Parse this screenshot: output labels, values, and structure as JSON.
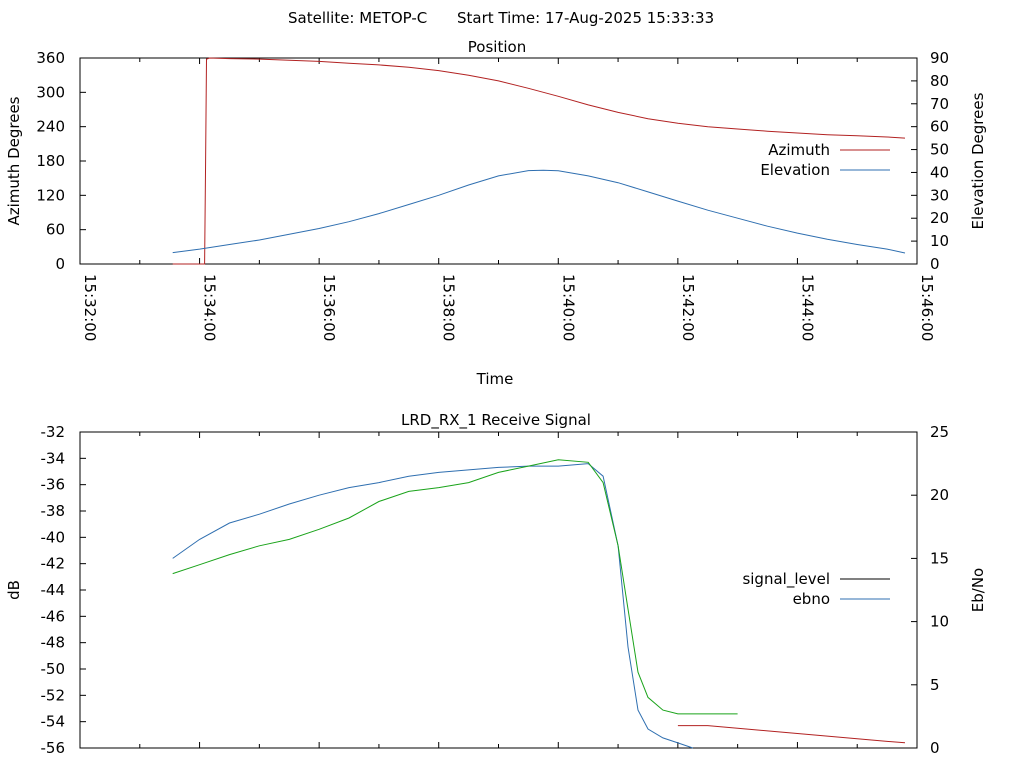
{
  "header": {
    "satellite_label": "Satellite: METOP-C",
    "start_time_label": "Start Time: 17-Aug-2025 15:33:33"
  },
  "chart_data": [
    {
      "type": "line",
      "title": "Position",
      "xlabel": "Time",
      "ylabel": "Azimuth Degrees",
      "y2label": "Elevation Degrees",
      "xlim": [
        "15:32:00",
        "15:46:00"
      ],
      "ylim": [
        0,
        360
      ],
      "y2lim": [
        0,
        90
      ],
      "xticks": [
        "15:32:00",
        "15:34:00",
        "15:36:00",
        "15:38:00",
        "15:40:00",
        "15:42:00",
        "15:44:00",
        "15:46:00"
      ],
      "yticks": [
        "0",
        "60",
        "120",
        "180",
        "240",
        "300",
        "360"
      ],
      "y2ticks": [
        "0",
        "10",
        "20",
        "30",
        "40",
        "50",
        "60",
        "70",
        "80",
        "90"
      ],
      "legend_position": "right",
      "series": [
        {
          "name": "Azimuth",
          "color": "#b22222",
          "axis": "left",
          "x": [
            "15:33:33",
            "15:33:50",
            "15:34:05",
            "15:34:06",
            "15:34:07",
            "15:34:10",
            "15:34:30",
            "15:35:00",
            "15:35:30",
            "15:36:00",
            "15:36:30",
            "15:37:00",
            "15:37:30",
            "15:38:00",
            "15:38:30",
            "15:39:00",
            "15:39:30",
            "15:40:00",
            "15:40:30",
            "15:41:00",
            "15:41:30",
            "15:42:00",
            "15:42:30",
            "15:43:00",
            "15:43:30",
            "15:44:00",
            "15:44:30",
            "15:45:00",
            "15:45:30",
            "15:45:48"
          ],
          "y": [
            0,
            0,
            0,
            180,
            358,
            360,
            359,
            358,
            356,
            354,
            351,
            348,
            344,
            338,
            330,
            320,
            307,
            293,
            278,
            265,
            254,
            246,
            240,
            236,
            232,
            229,
            226,
            224,
            222,
            220
          ]
        },
        {
          "name": "Elevation",
          "color": "#2f6fb0",
          "axis": "right",
          "x": [
            "15:33:33",
            "15:34:00",
            "15:34:30",
            "15:35:00",
            "15:35:30",
            "15:36:00",
            "15:36:30",
            "15:37:00",
            "15:37:30",
            "15:38:00",
            "15:38:30",
            "15:39:00",
            "15:39:30",
            "15:39:45",
            "15:40:00",
            "15:40:30",
            "15:41:00",
            "15:41:30",
            "15:42:00",
            "15:42:30",
            "15:43:00",
            "15:43:30",
            "15:44:00",
            "15:44:30",
            "15:45:00",
            "15:45:30",
            "15:45:48"
          ],
          "y": [
            5,
            6.5,
            8.5,
            10.5,
            13,
            15.5,
            18.5,
            22,
            26,
            30,
            34.5,
            38.5,
            40.8,
            41,
            40.7,
            38.5,
            35.5,
            31.5,
            27.5,
            23.5,
            20,
            16.5,
            13.5,
            10.8,
            8.5,
            6.5,
            4.8
          ]
        }
      ]
    },
    {
      "type": "line",
      "title": "LRD_RX_1 Receive Signal",
      "xlabel": "",
      "ylabel": "dB",
      "y2label": "Eb/No",
      "xlim": [
        "15:32:00",
        "15:46:00"
      ],
      "ylim": [
        -56,
        -32
      ],
      "y2lim": [
        0,
        25
      ],
      "yticks": [
        "-32",
        "-34",
        "-36",
        "-38",
        "-40",
        "-42",
        "-44",
        "-46",
        "-48",
        "-50",
        "-52",
        "-54",
        "-56"
      ],
      "y2ticks": [
        "0",
        "5",
        "10",
        "15",
        "20",
        "25"
      ],
      "legend_position": "right",
      "series": [
        {
          "name": "signal_level",
          "color": "#000000",
          "axis": "left",
          "x": [],
          "y": []
        },
        {
          "name": "ebno",
          "color": "#2f6fb0",
          "axis": "right",
          "x": [
            "15:33:33",
            "15:34:00",
            "15:34:30",
            "15:35:00",
            "15:35:30",
            "15:36:00",
            "15:36:30",
            "15:37:00",
            "15:37:30",
            "15:38:00",
            "15:38:30",
            "15:39:00",
            "15:39:30",
            "15:40:00",
            "15:40:30",
            "15:40:45",
            "15:41:00",
            "15:41:10",
            "15:41:20",
            "15:41:30",
            "15:41:45",
            "15:42:00",
            "15:42:15"
          ],
          "y": [
            15,
            16.5,
            17.8,
            18.5,
            19.3,
            20,
            20.6,
            21,
            21.5,
            21.8,
            22,
            22.2,
            22.3,
            22.3,
            22.5,
            21.5,
            16,
            8,
            3,
            1.5,
            0.8,
            0.4,
            0
          ]
        },
        {
          "name": "",
          "color": "#1aa31a",
          "axis": "right",
          "x": [
            "15:33:33",
            "15:34:00",
            "15:34:30",
            "15:35:00",
            "15:35:30",
            "15:36:00",
            "15:36:30",
            "15:37:00",
            "15:37:30",
            "15:38:00",
            "15:38:30",
            "15:39:00",
            "15:39:30",
            "15:40:00",
            "15:40:30",
            "15:40:45",
            "15:41:00",
            "15:41:10",
            "15:41:20",
            "15:41:30",
            "15:41:45",
            "15:42:00",
            "15:42:30",
            "15:43:00"
          ],
          "y": [
            13.8,
            14.5,
            15.3,
            16,
            16.5,
            17.3,
            18.2,
            19.5,
            20.3,
            20.6,
            21,
            21.8,
            22.3,
            22.8,
            22.6,
            21,
            16,
            11,
            6,
            4,
            3,
            2.7,
            2.7,
            2.7
          ]
        },
        {
          "name": "",
          "color": "#b22222",
          "axis": "left",
          "x": [
            "15:42:00",
            "15:42:30",
            "15:43:00",
            "15:43:30",
            "15:44:00",
            "15:44:30",
            "15:45:00",
            "15:45:30",
            "15:45:48"
          ],
          "y": [
            -54.3,
            -54.3,
            -54.5,
            -54.7,
            -54.9,
            -55.1,
            -55.3,
            -55.5,
            -55.6
          ]
        }
      ]
    }
  ]
}
